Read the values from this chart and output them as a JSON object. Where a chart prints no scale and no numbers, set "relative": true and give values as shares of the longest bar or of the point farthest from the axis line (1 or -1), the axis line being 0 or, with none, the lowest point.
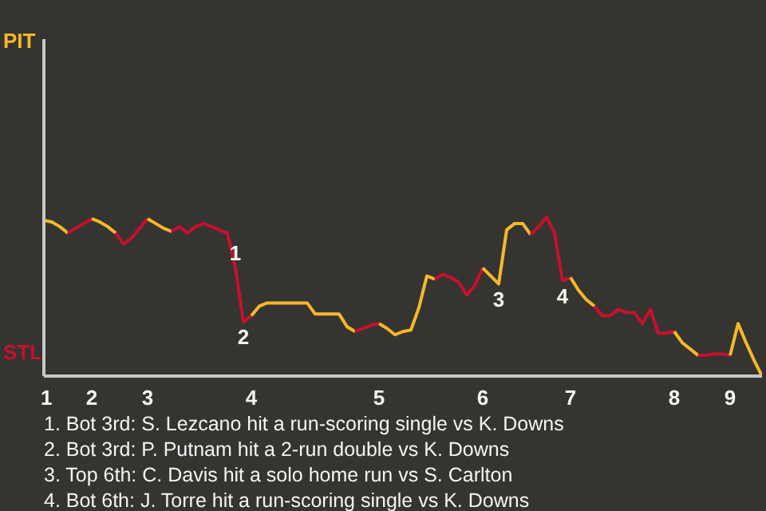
{
  "chart_data": {
    "type": "line",
    "relative": true,
    "categories": [
      "1",
      null,
      null,
      null,
      null,
      null,
      "2",
      null,
      null,
      null,
      null,
      null,
      null,
      "3",
      null,
      null,
      null,
      null,
      null,
      null,
      null,
      null,
      null,
      null,
      null,
      null,
      "4",
      null,
      null,
      null,
      null,
      null,
      null,
      null,
      null,
      null,
      null,
      null,
      null,
      null,
      null,
      null,
      "5",
      null,
      null,
      null,
      null,
      null,
      null,
      null,
      null,
      null,
      null,
      null,
      null,
      "6",
      null,
      null,
      null,
      null,
      null,
      null,
      null,
      null,
      null,
      null,
      "7",
      null,
      null,
      null,
      null,
      null,
      null,
      null,
      null,
      null,
      null,
      null,
      null,
      "8",
      null,
      null,
      null,
      null,
      null,
      null,
      "9",
      null,
      null,
      null,
      null
    ],
    "series": [
      {
        "name": "PIT",
        "color": "#f5b82a",
        "values": [
          0.98,
          0.97,
          0.94,
          0.9,
          null,
          null,
          null,
          null,
          null,
          null,
          null,
          null,
          null,
          null,
          null,
          null,
          null,
          null,
          null,
          null,
          null,
          null,
          null,
          null,
          null,
          null,
          null,
          null,
          null,
          null,
          null,
          null,
          null,
          null,
          null,
          null,
          null,
          null,
          null,
          null,
          null,
          null,
          null,
          null,
          null,
          null,
          null,
          null,
          null,
          null,
          null,
          null,
          null,
          null,
          null,
          null,
          null,
          null,
          null,
          null,
          null,
          null,
          null,
          null,
          null,
          null,
          null,
          null,
          null,
          null,
          null,
          null,
          null,
          null,
          null,
          null,
          null,
          null,
          null,
          null,
          null,
          null,
          null,
          null,
          null,
          null,
          null,
          null,
          null,
          null,
          null
        ]
      },
      {
        "name": "STL",
        "color": "#c8102e",
        "values": [
          null,
          null,
          null,
          0.9,
          0.93,
          0.96,
          0.99,
          null,
          null,
          null,
          null,
          null,
          null,
          null,
          null,
          null,
          null,
          null,
          null,
          null,
          null,
          null,
          null,
          null,
          null,
          null,
          null,
          null,
          null,
          null,
          null,
          null,
          null,
          null,
          null,
          null,
          null,
          null,
          null,
          null,
          null,
          null,
          null,
          null,
          null,
          null,
          null,
          null,
          null,
          null,
          null,
          null,
          null,
          null,
          null,
          null,
          null,
          null,
          null,
          null,
          null,
          null,
          null,
          null,
          null,
          null,
          null,
          null,
          null,
          null,
          null,
          null,
          null,
          null,
          null,
          null,
          null,
          null,
          null,
          null,
          null,
          null,
          null,
          null,
          null,
          null,
          null,
          null,
          null,
          null,
          null
        ]
      },
      {
        "color": "#f5b82a",
        "values": [
          null,
          null,
          null,
          null,
          null,
          null,
          0.99,
          0.97,
          0.94,
          0.9,
          null,
          null,
          null,
          null,
          null,
          null,
          null,
          null,
          null,
          null,
          null,
          null,
          null,
          null,
          null,
          null,
          null,
          null,
          null,
          null,
          null,
          null,
          null,
          null,
          null,
          null,
          null,
          null,
          null,
          null,
          null,
          null,
          null,
          null,
          null,
          null,
          null,
          null,
          null,
          null,
          null,
          null,
          null,
          null,
          null,
          null,
          null,
          null,
          null,
          null,
          null,
          null,
          null,
          null,
          null,
          null,
          null,
          null,
          null,
          null,
          null,
          null,
          null,
          null,
          null,
          null,
          null,
          null,
          null,
          null,
          null,
          null,
          null,
          null,
          null,
          null,
          null,
          null,
          null,
          null,
          null
        ]
      },
      {
        "color": "#c8102e",
        "values": [
          null,
          null,
          null,
          null,
          null,
          null,
          null,
          null,
          null,
          0.9,
          0.83,
          0.87,
          0.93,
          0.99,
          null,
          null,
          null,
          null,
          null,
          null,
          null,
          null,
          null,
          null,
          null,
          null,
          null,
          null,
          null,
          null,
          null,
          null,
          null,
          null,
          null,
          null,
          null,
          null,
          null,
          null,
          null,
          null,
          null,
          null,
          null,
          null,
          null,
          null,
          null,
          null,
          null,
          null,
          null,
          null,
          null,
          null,
          null,
          null,
          null,
          null,
          null,
          null,
          null,
          null,
          null,
          null,
          null,
          null,
          null,
          null,
          null,
          null,
          null,
          null,
          null,
          null,
          null,
          null,
          null,
          null,
          null,
          null,
          null,
          null,
          null,
          null,
          null,
          null,
          null,
          null,
          null
        ]
      },
      {
        "color": "#f5b82a",
        "values": [
          null,
          null,
          null,
          null,
          null,
          null,
          null,
          null,
          null,
          null,
          null,
          null,
          null,
          0.99,
          0.96,
          0.93,
          0.91,
          null,
          null,
          null,
          null,
          null,
          null,
          null,
          null,
          null,
          null,
          null,
          null,
          null,
          null,
          null,
          null,
          null,
          null,
          null,
          null,
          null,
          null,
          null,
          null,
          null,
          null,
          null,
          null,
          null,
          null,
          null,
          null,
          null,
          null,
          null,
          null,
          null,
          null,
          null,
          null,
          null,
          null,
          null,
          null,
          null,
          null,
          null,
          null,
          null,
          null,
          null,
          null,
          null,
          null,
          null,
          null,
          null,
          null,
          null,
          null,
          null,
          null,
          null,
          null,
          null,
          null,
          null,
          null,
          null,
          null,
          null,
          null,
          null,
          null
        ]
      },
      {
        "color": "#c8102e",
        "values": [
          null,
          null,
          null,
          null,
          null,
          null,
          null,
          null,
          null,
          null,
          null,
          null,
          null,
          null,
          null,
          null,
          0.91,
          0.94,
          0.9,
          0.94,
          0.96,
          0.94,
          0.92,
          0.9,
          0.68,
          0.34,
          0.38,
          null,
          null,
          null,
          null,
          null,
          null,
          null,
          null,
          null,
          null,
          null,
          null,
          null,
          null,
          null,
          null,
          null,
          null,
          null,
          null,
          null,
          null,
          null,
          null,
          null,
          null,
          null,
          null,
          null,
          null,
          null,
          null,
          null,
          null,
          null,
          null,
          null,
          null,
          null,
          null,
          null,
          null,
          null,
          null,
          null,
          null,
          null,
          null,
          null,
          null,
          null,
          null,
          null,
          null,
          null,
          null,
          null,
          null,
          null,
          null,
          null,
          null,
          null,
          null
        ]
      },
      {
        "color": "#f5b82a",
        "values": [
          null,
          null,
          null,
          null,
          null,
          null,
          null,
          null,
          null,
          null,
          null,
          null,
          null,
          null,
          null,
          null,
          null,
          null,
          null,
          null,
          null,
          null,
          null,
          null,
          null,
          null,
          0.38,
          0.44,
          0.46,
          0.46,
          0.46,
          0.46,
          0.46,
          0.46,
          0.39,
          0.39,
          0.39,
          0.39,
          0.31,
          0.28,
          null,
          null,
          null,
          null,
          null,
          null,
          null,
          null,
          null,
          null,
          null,
          null,
          null,
          null,
          null,
          null,
          null,
          null,
          null,
          null,
          null,
          null,
          null,
          null,
          null,
          null,
          null,
          null,
          null,
          null,
          null,
          null,
          null,
          null,
          null,
          null,
          null,
          null,
          null,
          null,
          null,
          null,
          null,
          null,
          null,
          null,
          null,
          null,
          null,
          null,
          null
        ]
      },
      {
        "color": "#c8102e",
        "values": [
          null,
          null,
          null,
          null,
          null,
          null,
          null,
          null,
          null,
          null,
          null,
          null,
          null,
          null,
          null,
          null,
          null,
          null,
          null,
          null,
          null,
          null,
          null,
          null,
          null,
          null,
          null,
          null,
          null,
          null,
          null,
          null,
          null,
          null,
          null,
          null,
          null,
          null,
          null,
          0.28,
          0.3,
          0.32,
          0.33,
          null,
          null,
          null,
          null,
          null,
          null,
          null,
          null,
          null,
          null,
          null,
          null,
          null,
          null,
          null,
          null,
          null,
          null,
          null,
          null,
          null,
          null,
          null,
          null,
          null,
          null,
          null,
          null,
          null,
          null,
          null,
          null,
          null,
          null,
          null,
          null,
          null,
          null,
          null,
          null,
          null,
          null,
          null,
          null,
          null,
          null,
          null,
          null
        ]
      },
      {
        "color": "#f5b82a",
        "values": [
          null,
          null,
          null,
          null,
          null,
          null,
          null,
          null,
          null,
          null,
          null,
          null,
          null,
          null,
          null,
          null,
          null,
          null,
          null,
          null,
          null,
          null,
          null,
          null,
          null,
          null,
          null,
          null,
          null,
          null,
          null,
          null,
          null,
          null,
          null,
          null,
          null,
          null,
          null,
          null,
          null,
          null,
          0.33,
          0.3,
          0.26,
          0.28,
          0.29,
          0.43,
          0.63,
          0.61,
          null,
          null,
          null,
          null,
          null,
          null,
          null,
          null,
          null,
          null,
          null,
          null,
          null,
          null,
          null,
          null,
          null,
          null,
          null,
          null,
          null,
          null,
          null,
          null,
          null,
          null,
          null,
          null,
          null,
          null,
          null,
          null,
          null,
          null,
          null,
          null,
          null,
          null,
          null,
          null,
          null
        ]
      },
      {
        "color": "#c8102e",
        "values": [
          null,
          null,
          null,
          null,
          null,
          null,
          null,
          null,
          null,
          null,
          null,
          null,
          null,
          null,
          null,
          null,
          null,
          null,
          null,
          null,
          null,
          null,
          null,
          null,
          null,
          null,
          null,
          null,
          null,
          null,
          null,
          null,
          null,
          null,
          null,
          null,
          null,
          null,
          null,
          null,
          null,
          null,
          null,
          null,
          null,
          null,
          null,
          null,
          null,
          0.61,
          0.64,
          0.62,
          0.59,
          0.51,
          0.57,
          0.68,
          null,
          null,
          null,
          null,
          null,
          null,
          null,
          null,
          null,
          null,
          null,
          null,
          null,
          null,
          null,
          null,
          null,
          null,
          null,
          null,
          null,
          null,
          null,
          null,
          null,
          null,
          null,
          null,
          null,
          null,
          null,
          null,
          null,
          null,
          null
        ]
      },
      {
        "color": "#f5b82a",
        "values": [
          null,
          null,
          null,
          null,
          null,
          null,
          null,
          null,
          null,
          null,
          null,
          null,
          null,
          null,
          null,
          null,
          null,
          null,
          null,
          null,
          null,
          null,
          null,
          null,
          null,
          null,
          null,
          null,
          null,
          null,
          null,
          null,
          null,
          null,
          null,
          null,
          null,
          null,
          null,
          null,
          null,
          null,
          null,
          null,
          null,
          null,
          null,
          null,
          null,
          null,
          null,
          null,
          null,
          null,
          null,
          0.68,
          0.63,
          0.58,
          0.92,
          0.96,
          0.96,
          0.89,
          null,
          null,
          null,
          null,
          null,
          null,
          null,
          null,
          null,
          null,
          null,
          null,
          null,
          null,
          null,
          null,
          null,
          null,
          null,
          null,
          null,
          null,
          null,
          null,
          null,
          null,
          null,
          null,
          null
        ]
      },
      {
        "color": "#c8102e",
        "values": [
          null,
          null,
          null,
          null,
          null,
          null,
          null,
          null,
          null,
          null,
          null,
          null,
          null,
          null,
          null,
          null,
          null,
          null,
          null,
          null,
          null,
          null,
          null,
          null,
          null,
          null,
          null,
          null,
          null,
          null,
          null,
          null,
          null,
          null,
          null,
          null,
          null,
          null,
          null,
          null,
          null,
          null,
          null,
          null,
          null,
          null,
          null,
          null,
          null,
          null,
          null,
          null,
          null,
          null,
          null,
          null,
          null,
          null,
          null,
          null,
          null,
          0.89,
          0.94,
          1,
          0.9,
          0.6,
          0.62,
          null,
          null,
          null,
          null,
          null,
          null,
          null,
          null,
          null,
          null,
          null,
          null,
          null,
          null,
          null,
          null,
          null,
          null,
          null,
          null,
          null,
          null,
          null,
          null
        ]
      },
      {
        "color": "#f5b82a",
        "values": [
          null,
          null,
          null,
          null,
          null,
          null,
          null,
          null,
          null,
          null,
          null,
          null,
          null,
          null,
          null,
          null,
          null,
          null,
          null,
          null,
          null,
          null,
          null,
          null,
          null,
          null,
          null,
          null,
          null,
          null,
          null,
          null,
          null,
          null,
          null,
          null,
          null,
          null,
          null,
          null,
          null,
          null,
          null,
          null,
          null,
          null,
          null,
          null,
          null,
          null,
          null,
          null,
          null,
          null,
          null,
          null,
          null,
          null,
          null,
          null,
          null,
          null,
          null,
          null,
          null,
          null,
          0.62,
          0.54,
          0.48,
          0.44,
          null,
          null,
          null,
          null,
          null,
          null,
          null,
          null,
          null,
          null,
          null,
          null,
          null,
          null,
          null,
          null,
          null,
          null,
          null,
          null,
          null
        ]
      },
      {
        "color": "#c8102e",
        "values": [
          null,
          null,
          null,
          null,
          null,
          null,
          null,
          null,
          null,
          null,
          null,
          null,
          null,
          null,
          null,
          null,
          null,
          null,
          null,
          null,
          null,
          null,
          null,
          null,
          null,
          null,
          null,
          null,
          null,
          null,
          null,
          null,
          null,
          null,
          null,
          null,
          null,
          null,
          null,
          null,
          null,
          null,
          null,
          null,
          null,
          null,
          null,
          null,
          null,
          null,
          null,
          null,
          null,
          null,
          null,
          null,
          null,
          null,
          null,
          null,
          null,
          null,
          null,
          null,
          null,
          null,
          null,
          null,
          null,
          0.44,
          0.38,
          0.38,
          0.42,
          0.4,
          0.4,
          0.33,
          0.42,
          0.27,
          0.27,
          0.28,
          null,
          null,
          null,
          null,
          null,
          null,
          null,
          null,
          null,
          null,
          null
        ]
      },
      {
        "color": "#f5b82a",
        "values": [
          null,
          null,
          null,
          null,
          null,
          null,
          null,
          null,
          null,
          null,
          null,
          null,
          null,
          null,
          null,
          null,
          null,
          null,
          null,
          null,
          null,
          null,
          null,
          null,
          null,
          null,
          null,
          null,
          null,
          null,
          null,
          null,
          null,
          null,
          null,
          null,
          null,
          null,
          null,
          null,
          null,
          null,
          null,
          null,
          null,
          null,
          null,
          null,
          null,
          null,
          null,
          null,
          null,
          null,
          null,
          null,
          null,
          null,
          null,
          null,
          null,
          null,
          null,
          null,
          null,
          null,
          null,
          null,
          null,
          null,
          null,
          null,
          null,
          null,
          null,
          null,
          null,
          null,
          null,
          0.28,
          0.21,
          0.17,
          0.13,
          null,
          null,
          null,
          null,
          null,
          null,
          null,
          null
        ]
      },
      {
        "color": "#c8102e",
        "values": [
          null,
          null,
          null,
          null,
          null,
          null,
          null,
          null,
          null,
          null,
          null,
          null,
          null,
          null,
          null,
          null,
          null,
          null,
          null,
          null,
          null,
          null,
          null,
          null,
          null,
          null,
          null,
          null,
          null,
          null,
          null,
          null,
          null,
          null,
          null,
          null,
          null,
          null,
          null,
          null,
          null,
          null,
          null,
          null,
          null,
          null,
          null,
          null,
          null,
          null,
          null,
          null,
          null,
          null,
          null,
          null,
          null,
          null,
          null,
          null,
          null,
          null,
          null,
          null,
          null,
          null,
          null,
          null,
          null,
          null,
          null,
          null,
          null,
          null,
          null,
          null,
          null,
          null,
          null,
          null,
          null,
          null,
          0.13,
          0.13,
          0.14,
          0.14,
          0.13,
          null,
          null,
          null,
          null
        ]
      },
      {
        "color": "#f5b82a",
        "values": [
          null,
          null,
          null,
          null,
          null,
          null,
          null,
          null,
          null,
          null,
          null,
          null,
          null,
          null,
          null,
          null,
          null,
          null,
          null,
          null,
          null,
          null,
          null,
          null,
          null,
          null,
          null,
          null,
          null,
          null,
          null,
          null,
          null,
          null,
          null,
          null,
          null,
          null,
          null,
          null,
          null,
          null,
          null,
          null,
          null,
          null,
          null,
          null,
          null,
          null,
          null,
          null,
          null,
          null,
          null,
          null,
          null,
          null,
          null,
          null,
          null,
          null,
          null,
          null,
          null,
          null,
          null,
          null,
          null,
          null,
          null,
          null,
          null,
          null,
          null,
          null,
          null,
          null,
          null,
          null,
          null,
          null,
          null,
          null,
          null,
          null,
          0.13,
          0.33,
          0.21,
          0.1,
          0
        ]
      }
    ],
    "annotations": [
      {
        "text": "1",
        "y": 0.68
      },
      {
        "text": "2",
        "y": 0.34
      },
      {
        "text": "3",
        "y": 0.58
      },
      {
        "text": "4",
        "y": 0.6
      },
      "1. Bot 3rd: S. Lezcano hit a run-scoring single vs K. Downs",
      "2. Bot 3rd: P. Putnam hit a 2-run double vs K. Downs",
      "3. Top 6th: C. Davis hit a solo home run vs S. Carlton",
      "4. Bot 6th: J. Torre hit a run-scoring single vs K. Downs"
    ]
  }
}
